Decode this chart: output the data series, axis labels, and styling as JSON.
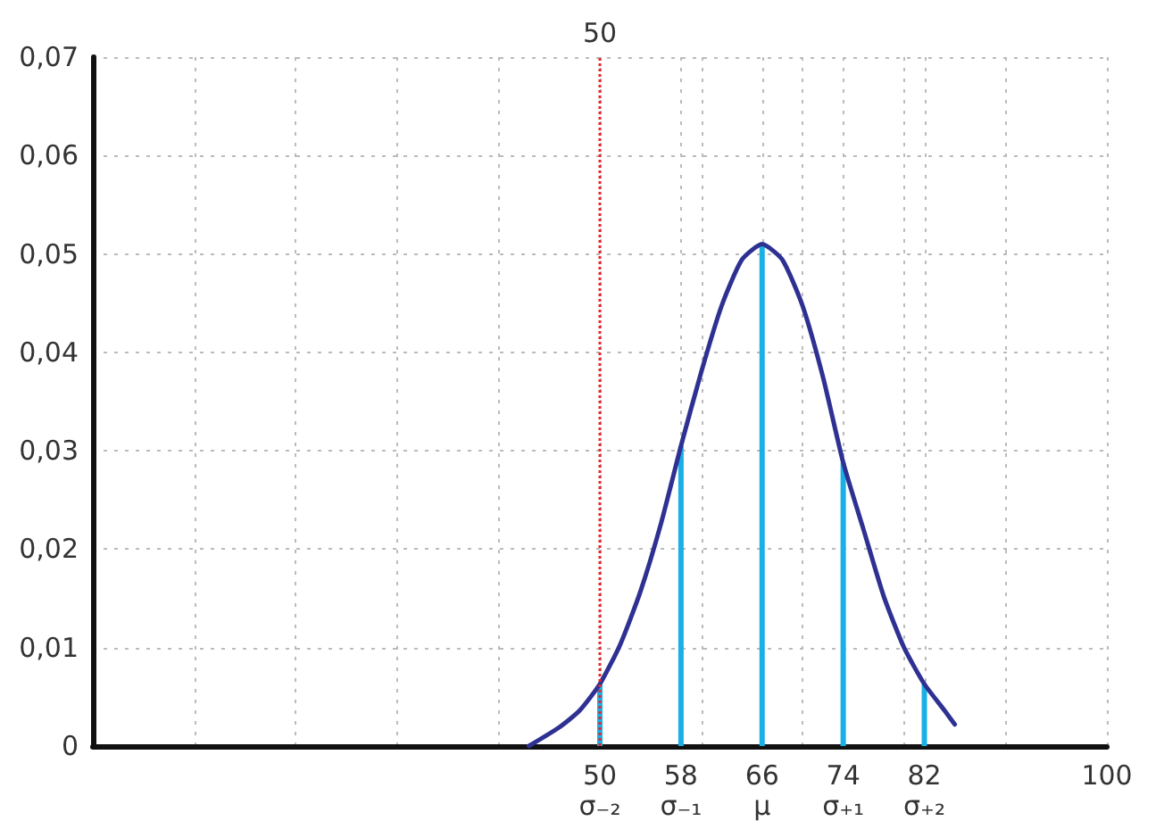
{
  "chart_data": {
    "type": "line",
    "series": [
      {
        "type": "bar",
        "color": "#1ab0e6",
        "x": [
          50,
          58,
          66,
          74,
          82
        ],
        "values": [
          0.0063,
          0.0305,
          0.051,
          0.0288,
          0.0063
        ]
      },
      {
        "color": "#2e3192",
        "x": [
          43,
          46,
          48,
          50,
          52,
          54,
          56,
          58,
          60,
          62,
          64,
          66,
          68,
          70,
          72,
          74,
          76,
          78,
          80,
          82,
          84,
          85
        ],
        "values": [
          0,
          0.0019,
          0.0036,
          0.0063,
          0.0103,
          0.0157,
          0.0225,
          0.0305,
          0.038,
          0.0447,
          0.0494,
          0.051,
          0.0494,
          0.0447,
          0.0375,
          0.0288,
          0.022,
          0.0152,
          0.01,
          0.0063,
          0.0036,
          0.0022
        ]
      }
    ],
    "xlim": [
      0,
      100
    ],
    "xticks": [
      {
        "value": 10,
        "label": null
      },
      {
        "value": 20,
        "label": null
      },
      {
        "value": 30,
        "label": null
      },
      {
        "value": 40,
        "label": null
      },
      {
        "value": 50,
        "label": "50\nσ₋₂"
      },
      {
        "value": 58,
        "label": "58\nσ₋₁"
      },
      {
        "value": 60,
        "label": null
      },
      {
        "value": 66,
        "label": "66\nμ"
      },
      {
        "value": 70,
        "label": null
      },
      {
        "value": 74,
        "label": "74\nσ₊₁"
      },
      {
        "value": 80,
        "label": null
      },
      {
        "value": 82,
        "label": "82\nσ₊₂"
      },
      {
        "value": 90,
        "label": null
      },
      100
    ],
    "ylim": [
      0,
      0.07
    ],
    "yticks": [
      0,
      {
        "value": 0.01,
        "label": "0,01"
      },
      {
        "value": 0.02,
        "label": "0,02"
      },
      {
        "value": 0.03,
        "label": "0,03"
      },
      {
        "value": 0.04,
        "label": "0,04"
      },
      {
        "value": 0.05,
        "label": "0,05"
      },
      {
        "value": 0.06,
        "label": "0,06"
      },
      {
        "value": 0.07,
        "label": "0,07"
      }
    ],
    "ref_lines": [
      {
        "axis": "x",
        "value": 50,
        "label": "50",
        "color": "#e8252a",
        "line_style": "dotted"
      }
    ],
    "grid": true,
    "marker": "none",
    "line_style": "solid"
  }
}
